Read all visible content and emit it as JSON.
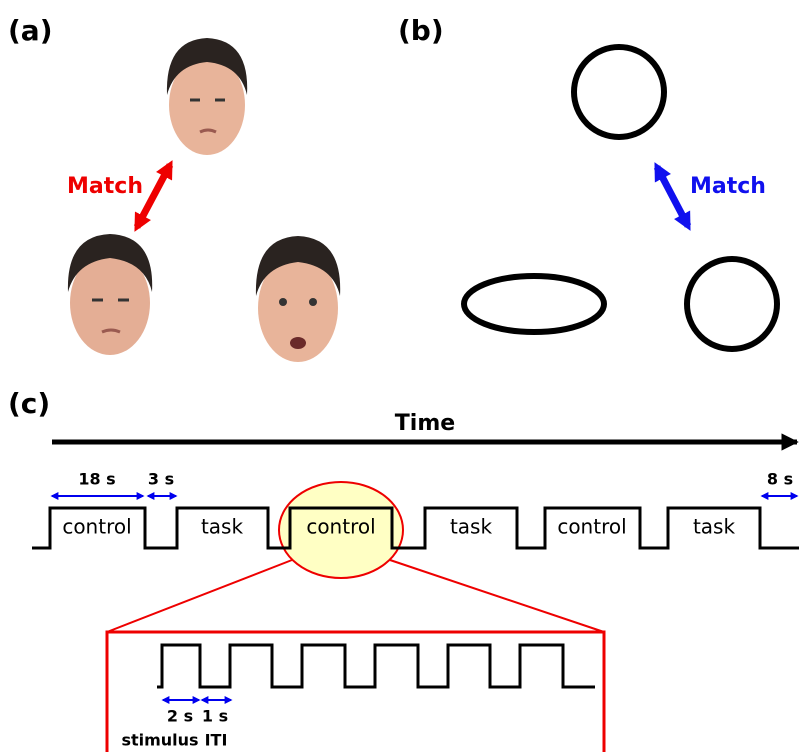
{
  "panels": {
    "a": {
      "label": "(a)",
      "arrow_label": "Match"
    },
    "b": {
      "label": "(b)",
      "arrow_label": "Match"
    },
    "c": {
      "label": "(c)",
      "axis_label": "Time",
      "durations": [
        "18 s",
        "3 s",
        "8 s"
      ],
      "blocks": [
        "control",
        "task",
        "control",
        "task",
        "control",
        "task"
      ],
      "zoom": {
        "durations": [
          "2 s",
          "1 s"
        ],
        "labels": [
          "stimulus",
          "ITI"
        ]
      }
    }
  }
}
